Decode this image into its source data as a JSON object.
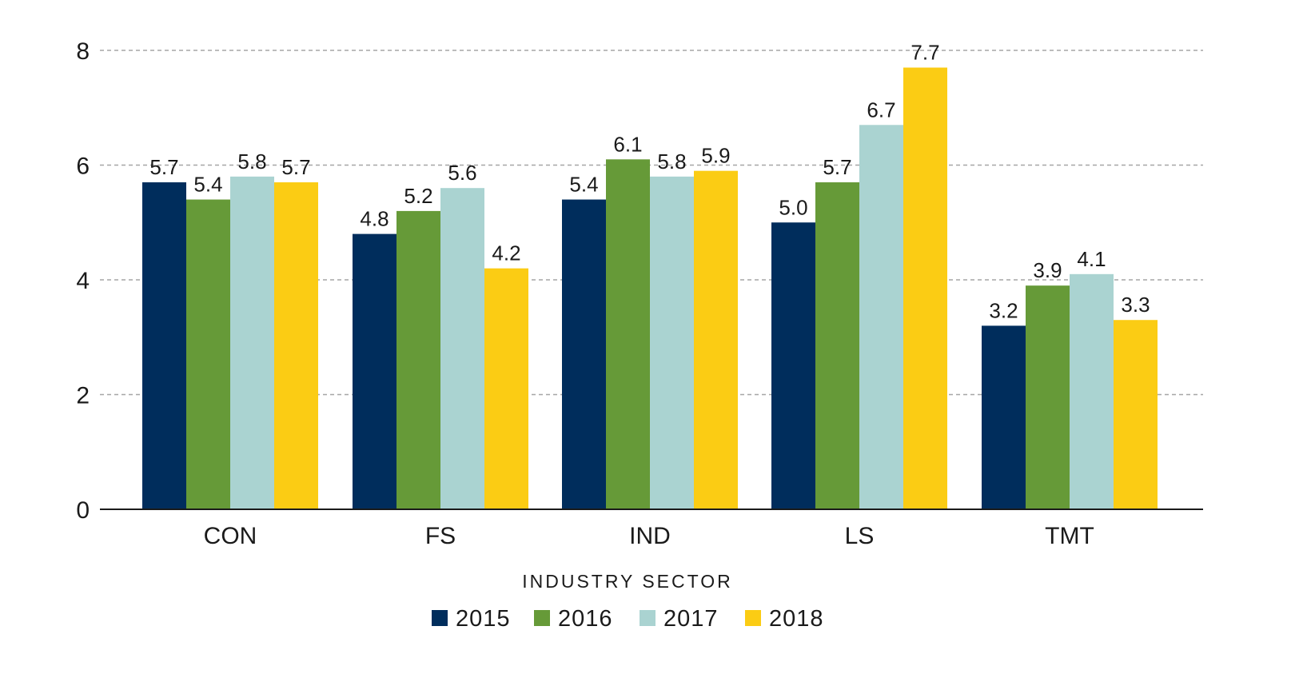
{
  "chart_data": {
    "type": "bar",
    "title": "",
    "xlabel": "INDUSTRY SECTOR",
    "ylabel": "",
    "ylim": [
      0,
      8
    ],
    "yticks": [
      0,
      2,
      4,
      6,
      8
    ],
    "grid": true,
    "legend_position": "bottom",
    "categories": [
      "CON",
      "FS",
      "IND",
      "LS",
      "TMT"
    ],
    "series": [
      {
        "name": "2015",
        "color": "#002d5c",
        "values": [
          5.7,
          4.8,
          5.4,
          5.0,
          3.2
        ],
        "labels": [
          "5.7",
          "4.8",
          "5.4",
          "5.0",
          "3.2"
        ]
      },
      {
        "name": "2016",
        "color": "#669a38",
        "values": [
          5.4,
          5.2,
          6.1,
          5.7,
          3.9
        ],
        "labels": [
          "5.4",
          "5.2",
          "6.1",
          "5.7",
          "3.9"
        ]
      },
      {
        "name": "2017",
        "color": "#aad3d1",
        "values": [
          5.8,
          5.6,
          5.8,
          6.7,
          4.1
        ],
        "labels": [
          "5.8",
          "5.6",
          "5.8",
          "6.7",
          "4.1"
        ]
      },
      {
        "name": "2018",
        "color": "#fbcc14",
        "values": [
          5.7,
          4.2,
          5.9,
          7.7,
          3.3
        ],
        "labels": [
          "5.7",
          "4.2",
          "5.9",
          "7.7",
          "3.3"
        ]
      }
    ]
  }
}
